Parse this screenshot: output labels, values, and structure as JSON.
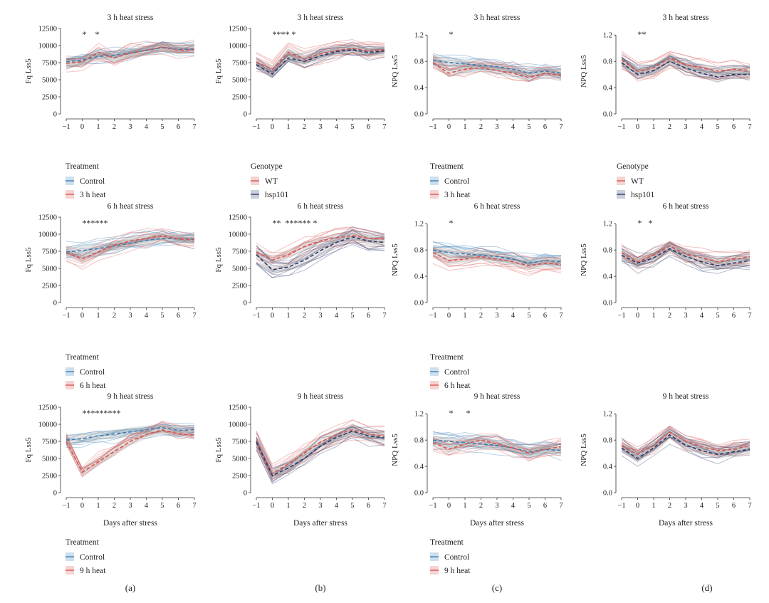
{
  "figure": {
    "panel_labels": [
      "(a)",
      "(b)",
      "(c)",
      "(d)"
    ],
    "xlabel": "Days after stress",
    "x": [
      -1,
      0,
      1,
      2,
      3,
      4,
      5,
      6,
      7
    ]
  },
  "chart_data": [
    {
      "type": "line",
      "title": "3 h heat stress",
      "ylabel": "Fq Lss5",
      "ylim": [
        0,
        12500
      ],
      "yticks": [
        0,
        2500,
        5000,
        7500,
        10000,
        12500
      ],
      "groups": [
        {
          "name": "Control",
          "color": "#3a7fb5",
          "mean": [
            7600,
            7900,
            8400,
            8600,
            8900,
            9300,
            9700,
            9400,
            9500
          ]
        },
        {
          "name": "3 h heat",
          "color": "#d9534f",
          "mean": [
            7400,
            7600,
            9000,
            8200,
            8900,
            9300,
            9800,
            9300,
            9400
          ]
        }
      ],
      "sig_label": "*    *"
    },
    {
      "type": "line",
      "title": "3 h heat stress",
      "ylabel": "Fq Lss5",
      "ylim": [
        0,
        12500
      ],
      "yticks": [
        0,
        2500,
        5000,
        7500,
        10000,
        12500
      ],
      "groups": [
        {
          "name": "WT",
          "color": "#d9534f",
          "mean": [
            7600,
            6500,
            9000,
            8000,
            8800,
            9300,
            9600,
            9200,
            9400
          ]
        },
        {
          "name": "hsp101",
          "color": "#2b3a6b",
          "mean": [
            7200,
            5800,
            8200,
            7700,
            8500,
            9100,
            9400,
            9000,
            9200
          ]
        }
      ],
      "sig_label": "**** *"
    },
    {
      "type": "line",
      "title": "3 h heat stress",
      "ylabel": "NPQ Lss5",
      "ylim": [
        0,
        1.3
      ],
      "yticks": [
        0.0,
        0.4,
        0.8,
        1.2
      ],
      "groups": [
        {
          "name": "Control",
          "color": "#3a7fb5",
          "mean": [
            0.82,
            0.78,
            0.76,
            0.74,
            0.72,
            0.68,
            0.62,
            0.65,
            0.62
          ]
        },
        {
          "name": "3 h heat",
          "color": "#d9534f",
          "mean": [
            0.78,
            0.62,
            0.68,
            0.7,
            0.66,
            0.62,
            0.55,
            0.62,
            0.58
          ]
        }
      ],
      "sig_label": "*"
    },
    {
      "type": "line",
      "title": "3 h heat stress",
      "ylabel": "NPQ Lss5",
      "ylim": [
        0,
        1.3
      ],
      "yticks": [
        0.0,
        0.4,
        0.8,
        1.2
      ],
      "groups": [
        {
          "name": "WT",
          "color": "#d9534f",
          "mean": [
            0.82,
            0.65,
            0.7,
            0.85,
            0.75,
            0.7,
            0.65,
            0.68,
            0.66
          ]
        },
        {
          "name": "hsp101",
          "color": "#2b3a6b",
          "mean": [
            0.78,
            0.6,
            0.66,
            0.8,
            0.7,
            0.62,
            0.56,
            0.6,
            0.6
          ]
        }
      ],
      "sig_label": "**"
    },
    {
      "type": "line",
      "title": "6 h heat stress",
      "ylabel": "Fq Lss5",
      "ylim": [
        0,
        12500
      ],
      "yticks": [
        0,
        2500,
        5000,
        7500,
        10000,
        12500
      ],
      "groups": [
        {
          "name": "Control",
          "color": "#3a7fb5",
          "mean": [
            7400,
            7600,
            7900,
            8300,
            8700,
            9100,
            9400,
            9300,
            9300
          ]
        },
        {
          "name": "6 h heat",
          "color": "#d9534f",
          "mean": [
            7300,
            6400,
            7400,
            8400,
            9000,
            9400,
            9800,
            9300,
            9200
          ]
        }
      ],
      "sig_label": "******"
    },
    {
      "type": "line",
      "title": "6 h heat stress",
      "ylabel": "Fq Lss5",
      "ylim": [
        0,
        12500
      ],
      "yticks": [
        0,
        2500,
        5000,
        7500,
        10000,
        12500
      ],
      "groups": [
        {
          "name": "WT",
          "color": "#d9534f",
          "mean": [
            7400,
            6200,
            7000,
            8200,
            9000,
            9500,
            9800,
            9400,
            9300
          ]
        },
        {
          "name": "hsp101",
          "color": "#2b3a6b",
          "mean": [
            7000,
            4800,
            5200,
            6200,
            7600,
            8800,
            9600,
            9000,
            8800
          ]
        }
      ],
      "sig_label": "**  ****** *"
    },
    {
      "type": "line",
      "title": "6 h heat stress",
      "ylabel": "NPQ Lss5",
      "ylim": [
        0,
        1.3
      ],
      "yticks": [
        0.0,
        0.4,
        0.8,
        1.2
      ],
      "groups": [
        {
          "name": "Control",
          "color": "#3a7fb5",
          "mean": [
            0.8,
            0.76,
            0.74,
            0.72,
            0.7,
            0.66,
            0.6,
            0.64,
            0.62
          ]
        },
        {
          "name": "6 h heat",
          "color": "#d9534f",
          "mean": [
            0.76,
            0.64,
            0.66,
            0.7,
            0.66,
            0.62,
            0.56,
            0.6,
            0.58
          ]
        }
      ],
      "sig_label": "*"
    },
    {
      "type": "line",
      "title": "6 h heat stress",
      "ylabel": "NPQ Lss5",
      "ylim": [
        0,
        1.3
      ],
      "yticks": [
        0.0,
        0.4,
        0.8,
        1.2
      ],
      "groups": [
        {
          "name": "WT",
          "color": "#d9534f",
          "mean": [
            0.76,
            0.62,
            0.72,
            0.86,
            0.74,
            0.68,
            0.62,
            0.66,
            0.7
          ]
        },
        {
          "name": "hsp101",
          "color": "#2b3a6b",
          "mean": [
            0.72,
            0.6,
            0.68,
            0.82,
            0.7,
            0.62,
            0.56,
            0.6,
            0.64
          ]
        }
      ],
      "sig_label": "*   *"
    },
    {
      "type": "line",
      "title": "9 h heat stress",
      "ylabel": "Fq Lss5",
      "ylim": [
        0,
        12500
      ],
      "yticks": [
        0,
        2500,
        5000,
        7500,
        10000,
        12500
      ],
      "groups": [
        {
          "name": "Control",
          "color": "#3a7fb5",
          "mean": [
            7700,
            7900,
            8300,
            8600,
            8900,
            9200,
            9500,
            9100,
            9200
          ]
        },
        {
          "name": "9 h heat",
          "color": "#d9534f",
          "mean": [
            7500,
            3000,
            4500,
            6000,
            7500,
            8500,
            9200,
            8600,
            8400
          ]
        }
      ],
      "sig_label": "*********"
    },
    {
      "type": "line",
      "title": "9 h heat stress",
      "ylabel": "Fq Lss5",
      "ylim": [
        0,
        12500
      ],
      "yticks": [
        0,
        2500,
        5000,
        7500,
        10000,
        12500
      ],
      "groups": [
        {
          "name": "WT",
          "color": "#d9534f",
          "mean": [
            7600,
            2800,
            4200,
            5800,
            7400,
            8500,
            9200,
            8600,
            8200
          ]
        },
        {
          "name": "hsp101",
          "color": "#2b3a6b",
          "mean": [
            7400,
            2500,
            3600,
            5000,
            6800,
            8100,
            9000,
            8300,
            8000
          ]
        }
      ],
      "sig_label": ""
    },
    {
      "type": "line",
      "title": "9 h heat stress",
      "ylabel": "NPQ Lss5",
      "ylim": [
        0,
        1.3
      ],
      "yticks": [
        0.0,
        0.4,
        0.8,
        1.2
      ],
      "groups": [
        {
          "name": "Control",
          "color": "#3a7fb5",
          "mean": [
            0.8,
            0.78,
            0.76,
            0.74,
            0.72,
            0.68,
            0.62,
            0.66,
            0.64
          ]
        },
        {
          "name": "9 h heat",
          "color": "#d9534f",
          "mean": [
            0.76,
            0.66,
            0.74,
            0.8,
            0.74,
            0.68,
            0.6,
            0.66,
            0.7
          ]
        }
      ],
      "sig_label": "*      *"
    },
    {
      "type": "line",
      "title": "9 h heat stress",
      "ylabel": "NPQ Lss5",
      "ylim": [
        0,
        1.3
      ],
      "yticks": [
        0.0,
        0.4,
        0.8,
        1.2
      ],
      "groups": [
        {
          "name": "WT",
          "color": "#d9534f",
          "mean": [
            0.72,
            0.58,
            0.72,
            0.92,
            0.78,
            0.7,
            0.64,
            0.66,
            0.72
          ]
        },
        {
          "name": "hsp101",
          "color": "#2b3a6b",
          "mean": [
            0.68,
            0.52,
            0.68,
            0.88,
            0.72,
            0.64,
            0.58,
            0.62,
            0.66
          ]
        }
      ],
      "sig_label": ""
    }
  ],
  "legends": [
    {
      "title": "Treatment",
      "items": [
        {
          "label": "Control",
          "color": "#3a7fb5"
        },
        {
          "label": "3 h heat",
          "color": "#d9534f"
        }
      ]
    },
    {
      "title": "Genotype",
      "items": [
        {
          "label": "WT",
          "color": "#d9534f"
        },
        {
          "label": "hsp101",
          "color": "#2b3a6b"
        }
      ]
    },
    {
      "title": "Treatment",
      "items": [
        {
          "label": "Control",
          "color": "#3a7fb5"
        },
        {
          "label": "3 h heat",
          "color": "#d9534f"
        }
      ]
    },
    {
      "title": "Genotype",
      "items": [
        {
          "label": "WT",
          "color": "#d9534f"
        },
        {
          "label": "hsp101",
          "color": "#2b3a6b"
        }
      ]
    },
    {
      "title": "Treatment",
      "items": [
        {
          "label": "Control",
          "color": "#3a7fb5"
        },
        {
          "label": "6 h heat",
          "color": "#d9534f"
        }
      ]
    },
    {
      "title": "Treatment",
      "items": [
        {
          "label": "Control",
          "color": "#3a7fb5"
        },
        {
          "label": "6 h heat",
          "color": "#d9534f"
        }
      ]
    },
    {
      "title": "Treatment",
      "items": [
        {
          "label": "Control",
          "color": "#3a7fb5"
        },
        {
          "label": "9 h heat",
          "color": "#d9534f"
        }
      ]
    },
    {
      "title": "Treatment",
      "items": [
        {
          "label": "Control",
          "color": "#3a7fb5"
        },
        {
          "label": "9 h heat",
          "color": "#d9534f"
        }
      ]
    }
  ]
}
